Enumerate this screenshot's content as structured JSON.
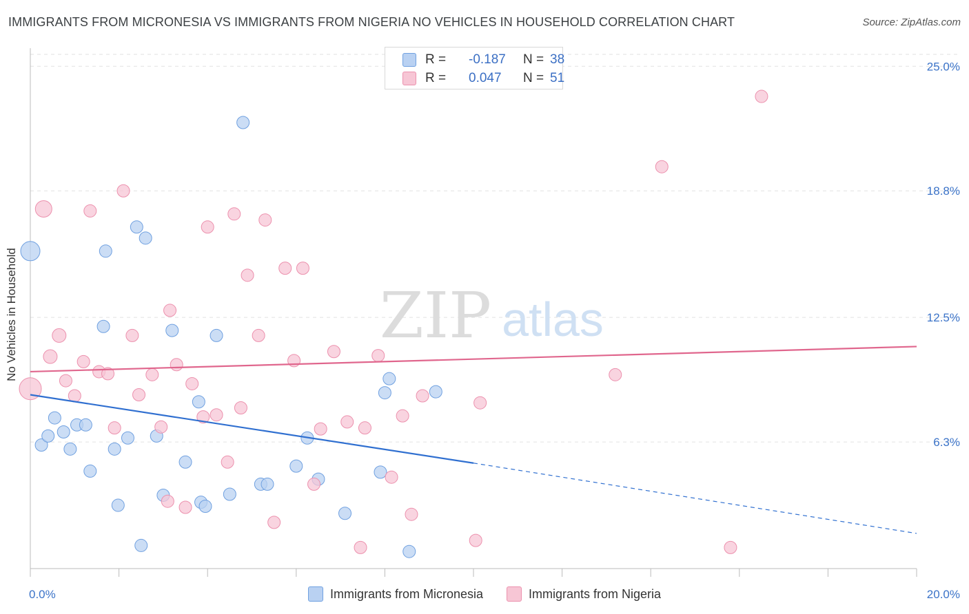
{
  "header": {
    "title": "IMMIGRANTS FROM MICRONESIA VS IMMIGRANTS FROM NIGERIA NO VEHICLES IN HOUSEHOLD CORRELATION CHART",
    "source": "Source: ZipAtlas.com"
  },
  "watermark": {
    "zip": "ZIP",
    "atlas": "atlas"
  },
  "stats": [
    {
      "r_label": "R =",
      "r_value": "-0.187",
      "n_label": "N =",
      "n_value": "38"
    },
    {
      "r_label": "R =",
      "r_value": "0.047",
      "n_label": "N =",
      "n_value": "51"
    }
  ],
  "chart_data": {
    "type": "scatter",
    "ylabel": "No Vehicles in Household",
    "xlim": [
      0,
      20
    ],
    "ylim": [
      0,
      25.9
    ],
    "x_tick_labels": [
      {
        "value": 0,
        "label": "0.0%"
      },
      {
        "value": 20,
        "label": "20.0%"
      }
    ],
    "y_tick_labels": [
      {
        "value": 6.3,
        "label": "6.3%"
      },
      {
        "value": 12.5,
        "label": "12.5%"
      },
      {
        "value": 18.8,
        "label": "18.8%"
      },
      {
        "value": 25.0,
        "label": "25.0%"
      }
    ],
    "legend_position": "bottom",
    "grid": true,
    "series": [
      {
        "name": "Immigrants from Micronesia",
        "color": "#6fa0e0",
        "fill": "#b9d1f2",
        "trend": {
          "x1": 0,
          "y1": 8.65,
          "x2": 10.0,
          "y2": 5.25,
          "dashed_to_x": 20,
          "dashed_to_y": 1.75,
          "color": "#2f6fd0"
        },
        "points": [
          [
            0.0,
            15.8,
            14
          ],
          [
            0.25,
            6.15,
            9
          ],
          [
            0.4,
            6.6,
            9
          ],
          [
            0.55,
            7.5,
            9
          ],
          [
            0.75,
            6.8,
            9
          ],
          [
            0.9,
            5.95,
            9
          ],
          [
            1.05,
            7.15,
            9
          ],
          [
            1.25,
            7.15,
            9
          ],
          [
            1.35,
            4.85,
            9
          ],
          [
            1.65,
            12.05,
            9
          ],
          [
            1.7,
            15.8,
            9
          ],
          [
            1.9,
            5.95,
            9
          ],
          [
            1.98,
            3.15,
            9
          ],
          [
            2.2,
            6.5,
            9
          ],
          [
            2.4,
            17.0,
            9
          ],
          [
            2.5,
            1.15,
            9
          ],
          [
            2.6,
            16.45,
            9
          ],
          [
            2.85,
            6.6,
            9
          ],
          [
            3.0,
            3.65,
            9
          ],
          [
            3.2,
            11.85,
            9
          ],
          [
            3.5,
            5.3,
            9
          ],
          [
            3.8,
            8.3,
            9
          ],
          [
            3.85,
            3.3,
            9
          ],
          [
            3.95,
            3.1,
            9
          ],
          [
            4.2,
            11.6,
            9
          ],
          [
            4.5,
            3.7,
            9
          ],
          [
            4.8,
            22.2,
            9
          ],
          [
            5.2,
            4.2,
            9
          ],
          [
            5.35,
            4.2,
            9
          ],
          [
            6.0,
            5.1,
            9
          ],
          [
            6.25,
            6.5,
            9
          ],
          [
            6.5,
            4.45,
            9
          ],
          [
            7.1,
            2.75,
            9
          ],
          [
            7.9,
            4.8,
            9
          ],
          [
            8.0,
            8.75,
            9
          ],
          [
            8.1,
            9.45,
            9
          ],
          [
            8.55,
            0.85,
            9
          ],
          [
            9.15,
            8.8,
            9
          ]
        ]
      },
      {
        "name": "Immigrants from Nigeria",
        "color": "#ec90ad",
        "fill": "#f7c6d5",
        "trend": {
          "x1": 0,
          "y1": 9.8,
          "x2": 20,
          "y2": 11.05,
          "color": "#e0668d"
        },
        "points": [
          [
            0.0,
            8.95,
            16
          ],
          [
            0.3,
            17.9,
            12
          ],
          [
            0.45,
            10.55,
            10
          ],
          [
            0.65,
            11.6,
            10
          ],
          [
            0.8,
            9.35,
            9
          ],
          [
            1.0,
            8.6,
            9
          ],
          [
            1.2,
            10.3,
            9
          ],
          [
            1.35,
            17.8,
            9
          ],
          [
            1.55,
            9.8,
            9
          ],
          [
            1.75,
            9.7,
            9
          ],
          [
            1.9,
            7.0,
            9
          ],
          [
            2.1,
            18.8,
            9
          ],
          [
            2.3,
            11.6,
            9
          ],
          [
            2.45,
            8.65,
            9
          ],
          [
            2.75,
            9.65,
            9
          ],
          [
            2.95,
            7.05,
            9
          ],
          [
            3.1,
            3.35,
            9
          ],
          [
            3.15,
            12.85,
            9
          ],
          [
            3.3,
            10.15,
            9
          ],
          [
            3.5,
            3.05,
            9
          ],
          [
            3.65,
            9.2,
            9
          ],
          [
            3.9,
            7.55,
            9
          ],
          [
            4.0,
            17.0,
            9
          ],
          [
            4.2,
            7.65,
            9
          ],
          [
            4.45,
            5.3,
            9
          ],
          [
            4.6,
            17.65,
            9
          ],
          [
            4.75,
            8.0,
            9
          ],
          [
            4.9,
            14.6,
            9
          ],
          [
            5.15,
            11.6,
            9
          ],
          [
            5.3,
            17.35,
            9
          ],
          [
            5.5,
            2.3,
            9
          ],
          [
            5.75,
            14.95,
            9
          ],
          [
            5.95,
            10.35,
            9
          ],
          [
            6.15,
            14.95,
            9
          ],
          [
            6.4,
            4.2,
            9
          ],
          [
            6.55,
            6.95,
            9
          ],
          [
            6.85,
            10.8,
            9
          ],
          [
            7.15,
            7.3,
            9
          ],
          [
            7.45,
            1.05,
            9
          ],
          [
            7.55,
            7.0,
            9
          ],
          [
            7.85,
            10.6,
            9
          ],
          [
            8.15,
            4.55,
            9
          ],
          [
            8.4,
            7.6,
            9
          ],
          [
            8.6,
            2.7,
            9
          ],
          [
            8.85,
            8.6,
            9
          ],
          [
            10.05,
            1.4,
            9
          ],
          [
            10.15,
            8.25,
            9
          ],
          [
            13.2,
            9.65,
            9
          ],
          [
            14.25,
            20.0,
            9
          ],
          [
            15.8,
            1.05,
            9
          ],
          [
            16.5,
            23.5,
            9
          ]
        ]
      }
    ]
  }
}
